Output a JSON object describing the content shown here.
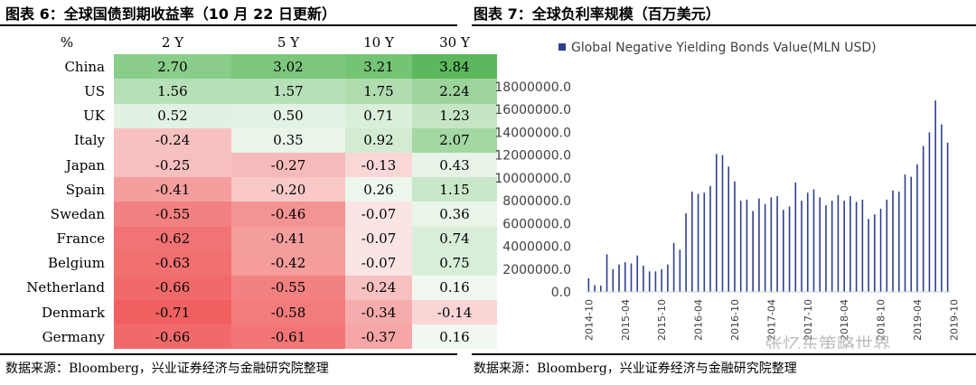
{
  "left_title": "图表 6：全球国债到期收益率（10 月 22 日更新）",
  "right_title": "图表 7：全球负利率规模（百万美元）",
  "left_source": "数据来源：Bloomberg，兴业证券经济与金融研究院整理",
  "right_source": "数据来源：Bloomberg，兴业证券经济与金融研究院整理",
  "watermark": "张忆东策略世界",
  "colors": {
    "bar": "#2e3f8f",
    "positive_strong": "#5cb85c",
    "negative_strong": "#f06060",
    "neutral": "#f7fbf7"
  },
  "chart_data": [
    {
      "type": "table",
      "header": [
        "%",
        "2 Y",
        "5 Y",
        "10 Y",
        "30 Y"
      ],
      "rows": [
        {
          "country": "China",
          "values": [
            "2.70",
            "3.02",
            "3.21",
            "3.84"
          ]
        },
        {
          "country": "US",
          "values": [
            "1.56",
            "1.57",
            "1.75",
            "2.24"
          ]
        },
        {
          "country": "UK",
          "values": [
            "0.52",
            "0.50",
            "0.71",
            "1.23"
          ]
        },
        {
          "country": "Italy",
          "values": [
            "-0.24",
            "0.35",
            "0.92",
            "2.07"
          ]
        },
        {
          "country": "Japan",
          "values": [
            "-0.25",
            "-0.27",
            "-0.13",
            "0.43"
          ]
        },
        {
          "country": "Spain",
          "values": [
            "-0.41",
            "-0.20",
            "0.26",
            "1.15"
          ]
        },
        {
          "country": "Swedan",
          "values": [
            "-0.55",
            "-0.46",
            "-0.07",
            "0.36"
          ]
        },
        {
          "country": "France",
          "values": [
            "-0.62",
            "-0.41",
            "-0.07",
            "0.74"
          ]
        },
        {
          "country": "Belgium",
          "values": [
            "-0.63",
            "-0.42",
            "-0.07",
            "0.75"
          ]
        },
        {
          "country": "Netherland",
          "values": [
            "-0.66",
            "-0.55",
            "-0.24",
            "0.16"
          ]
        },
        {
          "country": "Denmark",
          "values": [
            "-0.71",
            "-0.58",
            "-0.34",
            "-0.14"
          ]
        },
        {
          "country": "Germany",
          "values": [
            "-0.66",
            "-0.61",
            "-0.37",
            "0.16"
          ]
        }
      ]
    },
    {
      "type": "bar",
      "legend": "Global Negative Yielding Bonds Value(MLN USD)",
      "legend_position": "top",
      "ylim": [
        0,
        18000000
      ],
      "yticks": [
        "0.0",
        "2000000.0",
        "4000000.0",
        "6000000.0",
        "8000000.0",
        "10000000.0",
        "12000000.0",
        "14000000.0",
        "16000000.0",
        "18000000.0"
      ],
      "xticks": [
        "2014-10",
        "2015-04",
        "2015-10",
        "2016-04",
        "2016-10",
        "2017-04",
        "2017-10",
        "2018-04",
        "2018-10",
        "2019-04",
        "2019-10"
      ],
      "xtick_start_index": 0,
      "xtick_step": 6,
      "grid": false,
      "values": [
        1200000,
        600000,
        550000,
        3300000,
        2000000,
        2400000,
        2600000,
        2500000,
        3200000,
        2300000,
        1800000,
        1800000,
        2000000,
        2400000,
        4300000,
        3700000,
        6900000,
        8800000,
        8600000,
        8700000,
        9300000,
        12100000,
        12000000,
        11000000,
        9700000,
        8000000,
        8100000,
        7100000,
        8200000,
        7700000,
        8300000,
        8400000,
        7200000,
        7500000,
        9600000,
        8000000,
        8700000,
        9000000,
        8300000,
        7600000,
        8000000,
        8500000,
        8000000,
        8400000,
        7900000,
        8100000,
        6400000,
        6800000,
        7300000,
        8100000,
        8900000,
        8800000,
        10300000,
        10100000,
        11200000,
        12800000,
        14000000,
        16800000,
        14700000,
        13100000
      ]
    }
  ]
}
